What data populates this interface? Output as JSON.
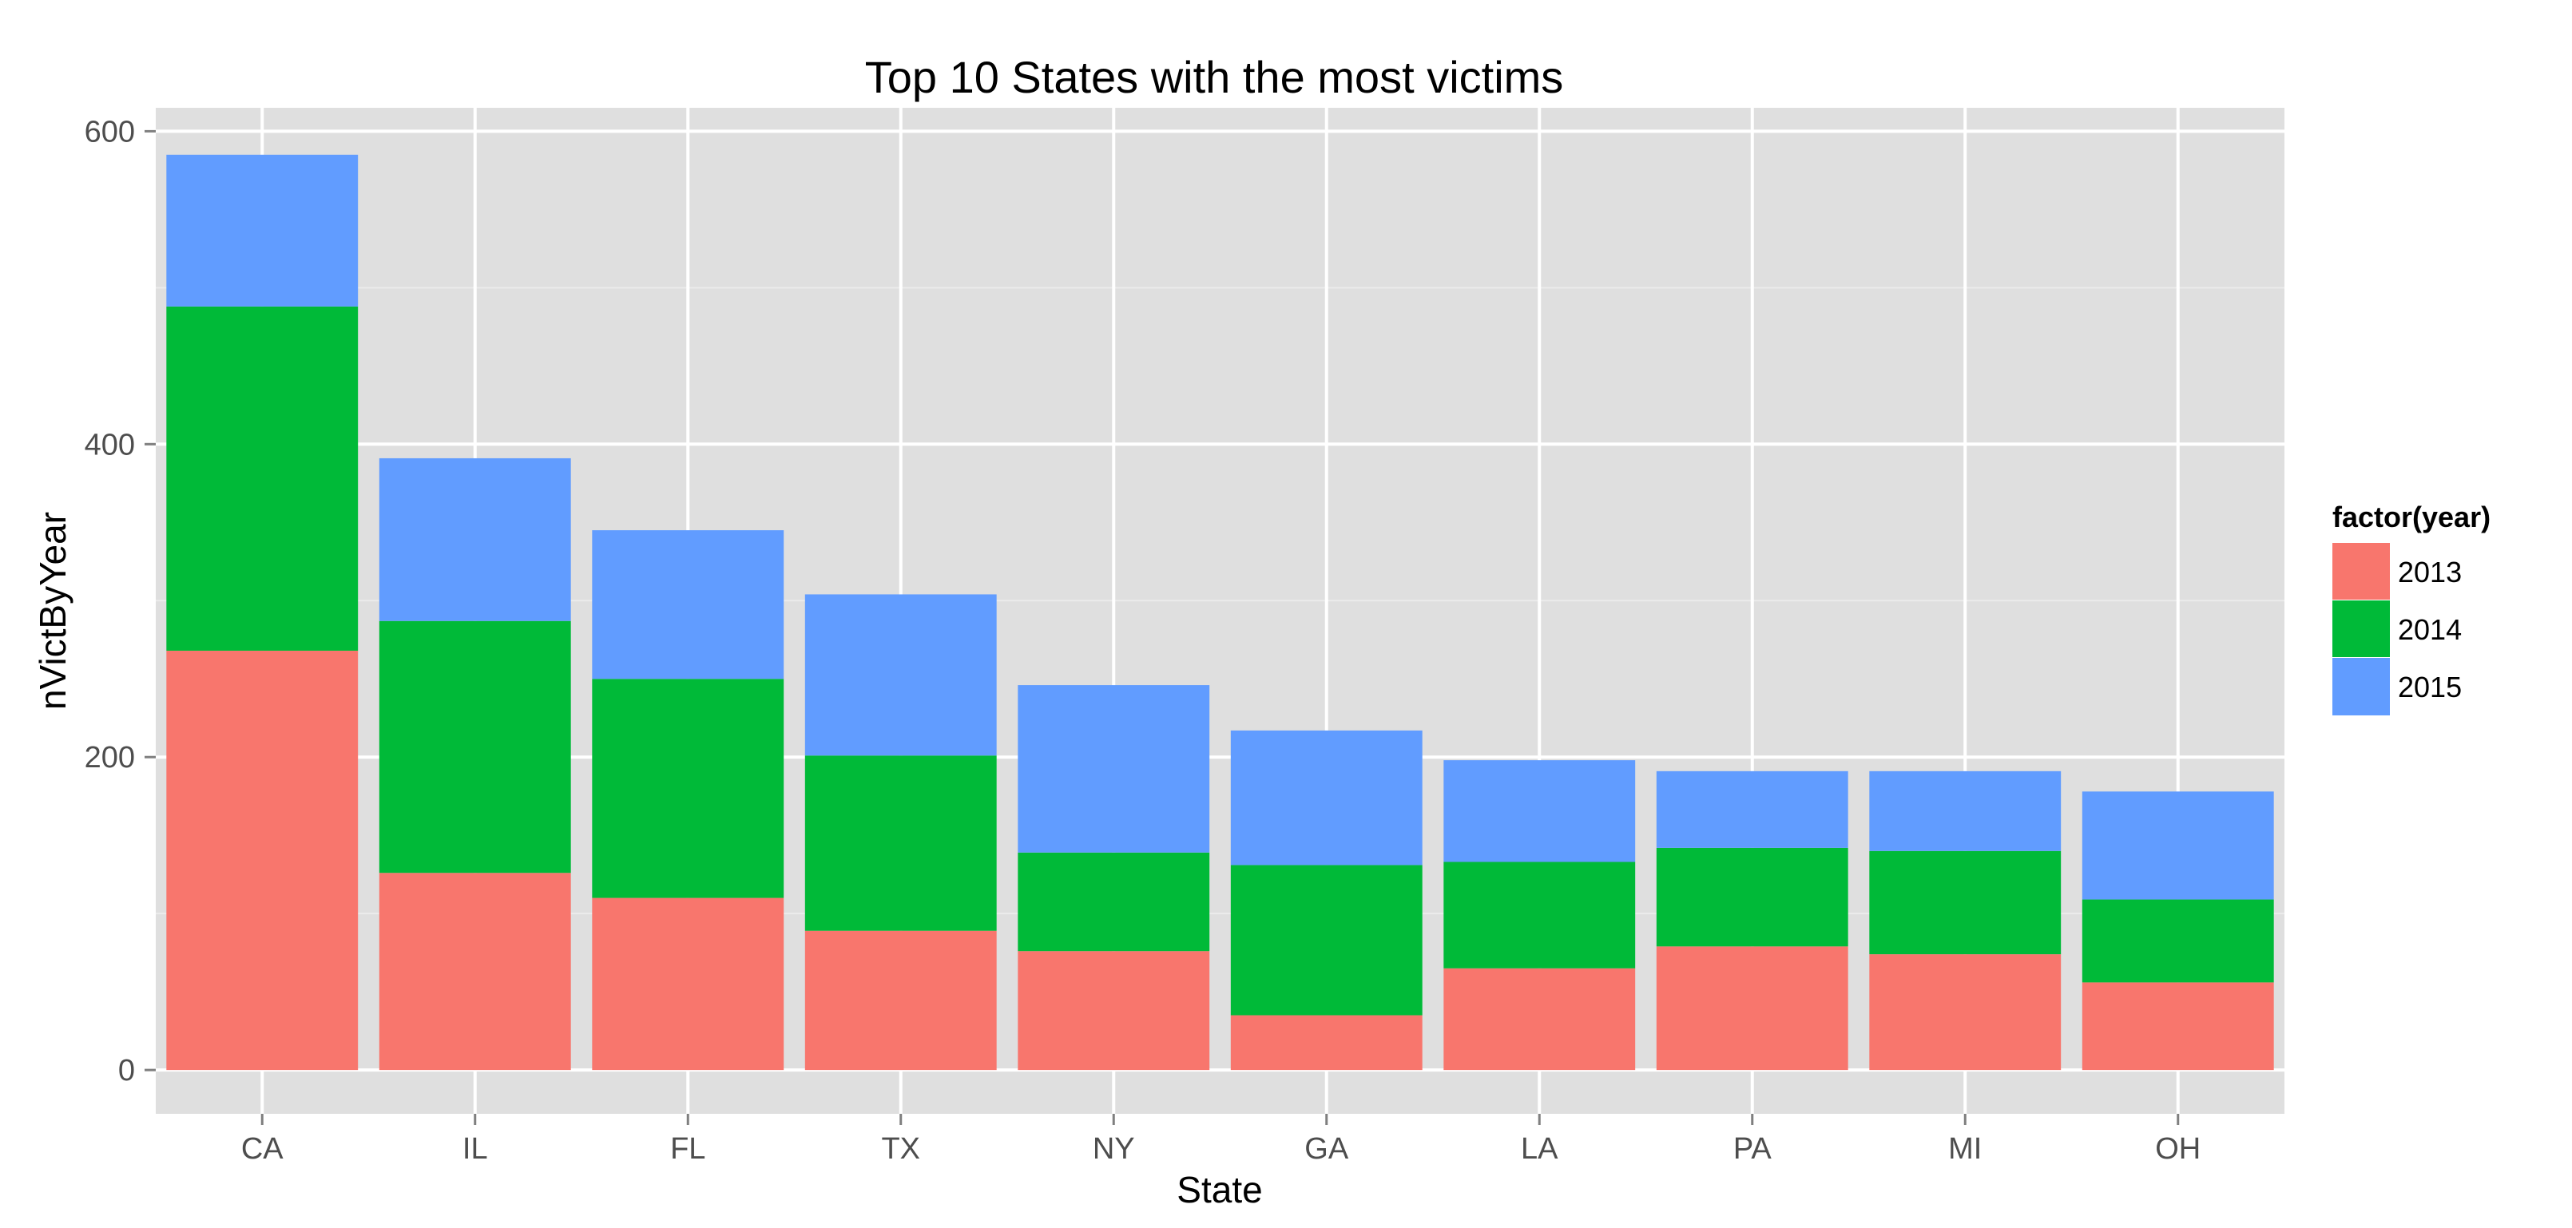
{
  "chart_data": {
    "type": "bar",
    "stacked": true,
    "title": "Top 10 States with the most victims",
    "xlabel": "State",
    "ylabel": "nVictByYear",
    "categories": [
      "CA",
      "IL",
      "FL",
      "TX",
      "NY",
      "GA",
      "LA",
      "PA",
      "MI",
      "OH"
    ],
    "series": [
      {
        "name": "2013",
        "color": "#F8766D",
        "values": [
          268,
          126,
          110,
          89,
          76,
          35,
          65,
          79,
          74,
          56
        ]
      },
      {
        "name": "2014",
        "color": "#00BA38",
        "values": [
          220,
          161,
          140,
          112,
          63,
          96,
          68,
          63,
          66,
          53
        ]
      },
      {
        "name": "2015",
        "color": "#619CFF",
        "values": [
          97,
          104,
          95,
          103,
          107,
          86,
          65,
          49,
          51,
          69
        ]
      }
    ],
    "ylim": [
      -28,
      615
    ],
    "yticks": [
      0,
      200,
      400,
      600
    ],
    "grid": true,
    "legend": {
      "title": "factor(year)",
      "placement": "right"
    },
    "colors": {
      "panel_background": "#DFDFDF",
      "gridline": "#FFFFFF",
      "tick_label": "#4D4D4D"
    }
  }
}
